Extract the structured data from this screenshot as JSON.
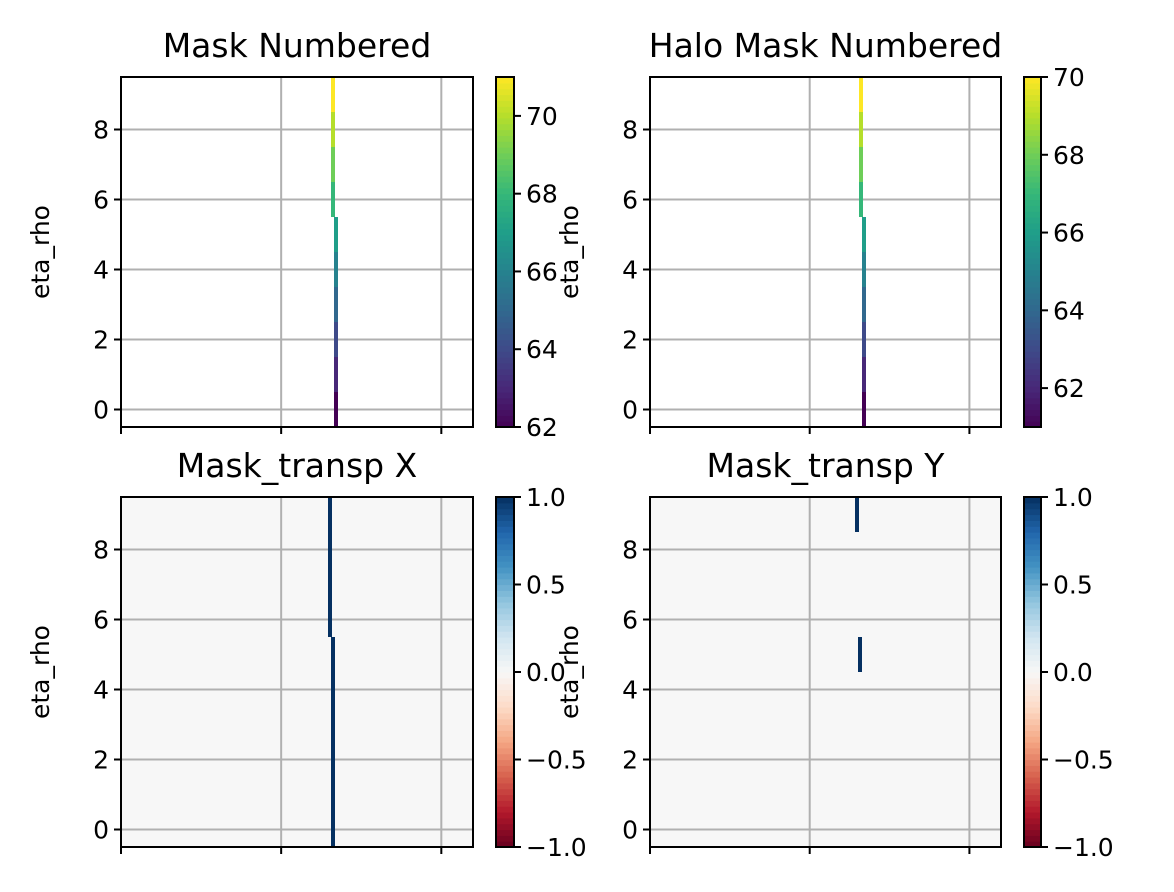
{
  "chart_data": [
    {
      "type": "heatmap",
      "title": "Mask Numbered",
      "ylabel": "eta_rho",
      "xlabel": "",
      "ylim": [
        -0.5,
        9.5
      ],
      "yticks": [
        "0",
        "2",
        "4",
        "6",
        "8"
      ],
      "ytick_values": [
        0,
        2,
        4,
        6,
        8
      ],
      "xticks_labeled": false,
      "grid": true,
      "colormap": "viridis",
      "colorbar": {
        "range": [
          62,
          71
        ],
        "tick_values": [
          62,
          64,
          66,
          68,
          70
        ],
        "tick_labels": [
          "62",
          "64",
          "66",
          "68",
          "70"
        ]
      },
      "cells": [
        {
          "col": 0,
          "row": 0,
          "value": 62
        },
        {
          "col": 0,
          "row": 1,
          "value": 63
        },
        {
          "col": 0,
          "row": 2,
          "value": 64
        },
        {
          "col": 0,
          "row": 3,
          "value": 65
        },
        {
          "col": 0,
          "row": 4,
          "value": 66
        },
        {
          "col": 0,
          "row": 5,
          "value": 67
        },
        {
          "col": -1,
          "row": 6,
          "value": 68
        },
        {
          "col": -1,
          "row": 7,
          "value": 69
        },
        {
          "col": -1,
          "row": 8,
          "value": 70
        },
        {
          "col": -1,
          "row": 9,
          "value": 71
        }
      ]
    },
    {
      "type": "heatmap",
      "title": "Halo Mask Numbered",
      "ylabel": "eta_rho",
      "xlabel": "",
      "ylim": [
        -0.5,
        9.5
      ],
      "yticks": [
        "0",
        "2",
        "4",
        "6",
        "8"
      ],
      "ytick_values": [
        0,
        2,
        4,
        6,
        8
      ],
      "xticks_labeled": false,
      "grid": true,
      "colormap": "viridis",
      "colorbar": {
        "range": [
          61,
          70
        ],
        "tick_values": [
          62,
          64,
          66,
          68,
          70
        ],
        "tick_labels": [
          "62",
          "64",
          "66",
          "68",
          "70"
        ]
      },
      "cells": [
        {
          "col": 0,
          "row": 0,
          "value": 61
        },
        {
          "col": 0,
          "row": 1,
          "value": 62
        },
        {
          "col": 0,
          "row": 2,
          "value": 63
        },
        {
          "col": 0,
          "row": 3,
          "value": 64
        },
        {
          "col": 0,
          "row": 4,
          "value": 65
        },
        {
          "col": 0,
          "row": 5,
          "value": 66
        },
        {
          "col": -1,
          "row": 6,
          "value": 67
        },
        {
          "col": -1,
          "row": 7,
          "value": 68
        },
        {
          "col": -1,
          "row": 8,
          "value": 69
        },
        {
          "col": -1,
          "row": 9,
          "value": 70
        }
      ]
    },
    {
      "type": "heatmap",
      "title": "Mask_transp X",
      "ylabel": "eta_rho",
      "xlabel": "",
      "ylim": [
        -0.5,
        9.5
      ],
      "yticks": [
        "0",
        "2",
        "4",
        "6",
        "8"
      ],
      "ytick_values": [
        0,
        2,
        4,
        6,
        8
      ],
      "xticks_labeled": false,
      "grid": true,
      "colormap": "RdBu",
      "background_value": 0,
      "colorbar": {
        "range": [
          -1,
          1
        ],
        "tick_values": [
          -1,
          -0.5,
          0,
          0.5,
          1
        ],
        "tick_labels": [
          "−1.0",
          "−0.5",
          "0.0",
          "0.5",
          "1.0"
        ]
      },
      "cells": [
        {
          "col": 0,
          "row": 0,
          "value": 1
        },
        {
          "col": 0,
          "row": 1,
          "value": 1
        },
        {
          "col": 0,
          "row": 2,
          "value": 1
        },
        {
          "col": 0,
          "row": 3,
          "value": 1
        },
        {
          "col": 0,
          "row": 4,
          "value": 1
        },
        {
          "col": 0,
          "row": 5,
          "value": 1
        },
        {
          "col": -1,
          "row": 6,
          "value": 1
        },
        {
          "col": -1,
          "row": 7,
          "value": 1
        },
        {
          "col": -1,
          "row": 8,
          "value": 1
        },
        {
          "col": -1,
          "row": 9,
          "value": 1
        }
      ]
    },
    {
      "type": "heatmap",
      "title": "Mask_transp Y",
      "ylabel": "eta_rho",
      "xlabel": "",
      "ylim": [
        -0.5,
        9.5
      ],
      "yticks": [
        "0",
        "2",
        "4",
        "6",
        "8"
      ],
      "ytick_values": [
        0,
        2,
        4,
        6,
        8
      ],
      "xticks_labeled": false,
      "grid": true,
      "colormap": "RdBu",
      "background_value": 0,
      "colorbar": {
        "range": [
          -1,
          1
        ],
        "tick_values": [
          -1,
          -0.5,
          0,
          0.5,
          1
        ],
        "tick_labels": [
          "−1.0",
          "−0.5",
          "0.0",
          "0.5",
          "1.0"
        ]
      },
      "cells": [
        {
          "col": 0,
          "row": 5,
          "value": 1
        },
        {
          "col": -1,
          "row": 9,
          "value": 1
        }
      ]
    }
  ]
}
